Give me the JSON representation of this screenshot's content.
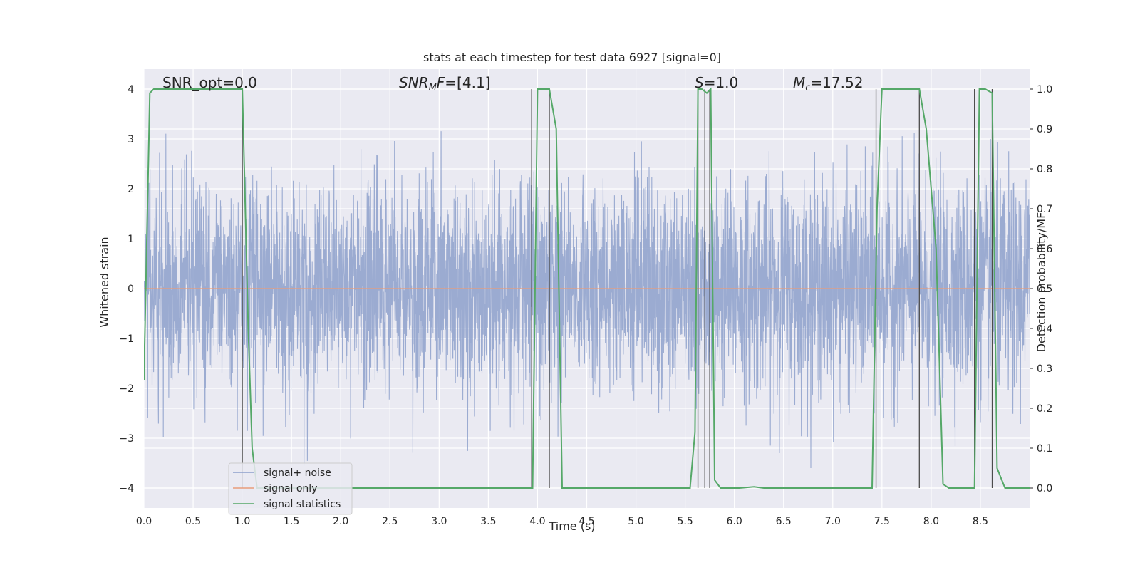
{
  "chart_data": {
    "type": "line",
    "title": "stats at each timestep for test data 6927 [signal=0]",
    "xlabel": "Time (s)",
    "ylabel": "Whitened strain",
    "ylabel_right": "Detection probability/MF",
    "xlim": [
      0,
      9
    ],
    "ylim": [
      -4.4,
      4.4
    ],
    "ylim_right": [
      -0.05,
      1.05
    ],
    "x_ticks": [
      "0.0",
      "0.5",
      "1.0",
      "1.5",
      "2.0",
      "2.5",
      "3.0",
      "3.5",
      "4.0",
      "4.5",
      "5.0",
      "5.5",
      "6.0",
      "6.5",
      "7.0",
      "7.5",
      "8.0",
      "8.5"
    ],
    "y_ticks": [
      "4",
      "3",
      "2",
      "1",
      "0",
      "−1",
      "−2",
      "−3",
      "−4"
    ],
    "y_ticks_right": [
      "1.0",
      "0.9",
      "0.8",
      "0.7",
      "0.6",
      "0.5",
      "0.4",
      "0.3",
      "0.2",
      "0.1",
      "0.0"
    ],
    "grid": true,
    "legend": {
      "placement": "lower-left",
      "entries": [
        {
          "label": "signal+ noise",
          "color": "#8da0cb"
        },
        {
          "label": "signal only",
          "color": "#e89b7a"
        },
        {
          "label": "signal statistics",
          "color": "#55a868"
        }
      ]
    },
    "annotations": {
      "snr_opt": "SNR_opt=0.0",
      "snr_mf_main": "SNR",
      "snr_mf_sub": "M",
      "snr_mf_rest": "F=[4.1]",
      "s_main": "S",
      "s_rest": "=1.0",
      "mc_main": "M",
      "mc_sub": "c",
      "mc_rest": "=17.52"
    },
    "series": [
      {
        "name": "signal+ noise",
        "description_values": "whitened noise, amplitude roughly within [-3.6, 4.0], centered at 0",
        "sample_rate_hz": 2048,
        "amplitude_sigma": 1.0
      },
      {
        "name": "signal only",
        "values_constant": 0.0
      },
      {
        "name": "signal statistics",
        "x": [
          0.0,
          0.06,
          0.1,
          0.2,
          0.98,
          1.0,
          1.02,
          1.06,
          1.1,
          1.15,
          1.2,
          3.92,
          3.95,
          4.0,
          4.12,
          4.19,
          4.25,
          5.55,
          5.6,
          5.63,
          5.67,
          5.72,
          5.76,
          5.8,
          5.86,
          6.05,
          6.2,
          6.3,
          7.4,
          7.45,
          7.5,
          7.88,
          7.95,
          8.05,
          8.12,
          8.18,
          8.44,
          8.49,
          8.55,
          8.62,
          8.67,
          8.75,
          9.0
        ],
        "values": [
          0.27,
          0.99,
          1.0,
          1.0,
          1.0,
          1.0,
          0.8,
          0.4,
          0.1,
          0.0,
          0.0,
          0.0,
          0.0,
          1.0,
          1.0,
          0.9,
          0.0,
          0.0,
          0.14,
          1.0,
          1.0,
          0.99,
          1.0,
          0.02,
          0.0,
          0.0,
          0.003,
          0.0,
          0.0,
          0.7,
          1.0,
          1.0,
          0.9,
          0.6,
          0.01,
          0.0,
          0.0,
          1.0,
          1.0,
          0.99,
          0.05,
          0.0,
          0.0
        ]
      }
    ],
    "vertical_markers_x": [
      1.0,
      3.94,
      4.12,
      5.63,
      5.7,
      5.75,
      7.44,
      7.88,
      8.44,
      8.62
    ],
    "colors": {
      "background": "#eaeaf2",
      "grid": "#ffffff",
      "noise": "#8da0cb",
      "signal": "#e89b7a",
      "statistics": "#55a868",
      "markers": "#4c4c4c"
    }
  }
}
